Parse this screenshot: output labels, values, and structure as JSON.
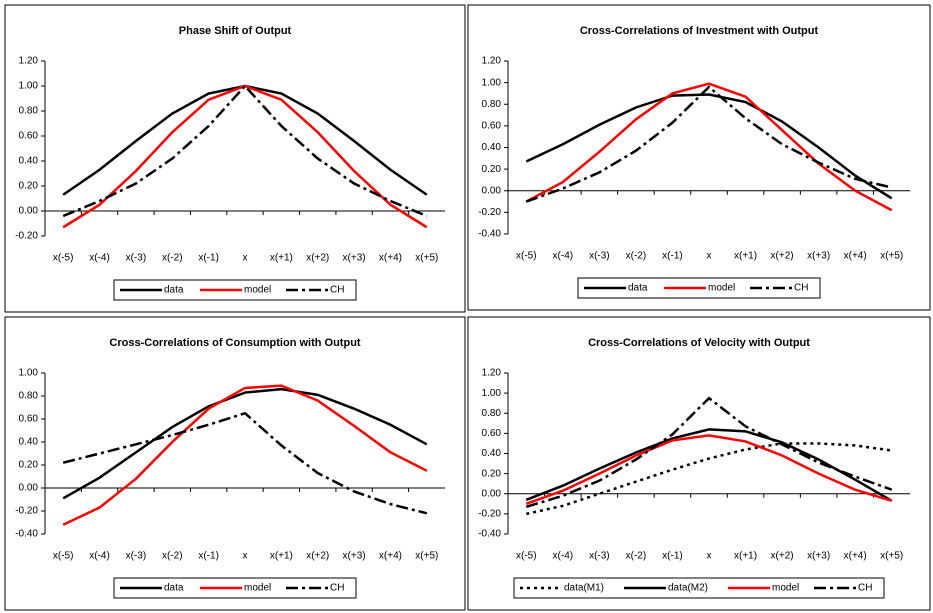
{
  "chart_data": [
    {
      "type": "line",
      "title": "Phase Shift of Output",
      "categories": [
        "x(-5)",
        "x(-4)",
        "x(-3)",
        "x(-2)",
        "x(-1)",
        "x",
        "x(+1)",
        "x(+2)",
        "x(+3)",
        "x(+4)",
        "x(+5)"
      ],
      "series": [
        {
          "name": "data",
          "color": "#000000",
          "style": "solid",
          "values": [
            0.13,
            0.33,
            0.56,
            0.78,
            0.94,
            1.0,
            0.94,
            0.78,
            0.56,
            0.33,
            0.13
          ]
        },
        {
          "name": "model",
          "color": "#ff0000",
          "style": "solid",
          "values": [
            -0.13,
            0.05,
            0.32,
            0.63,
            0.89,
            1.0,
            0.89,
            0.63,
            0.32,
            0.05,
            -0.13
          ]
        },
        {
          "name": "CH",
          "color": "#000000",
          "style": "dashdot",
          "values": [
            -0.04,
            0.08,
            0.22,
            0.42,
            0.68,
            1.0,
            0.68,
            0.42,
            0.22,
            0.08,
            -0.04
          ]
        }
      ],
      "ylim": [
        -0.2,
        1.2
      ],
      "yticks": [
        {
          "value": -0.2,
          "label": "-0.20"
        },
        {
          "value": 0,
          "label": "0.00"
        },
        {
          "value": 0.2,
          "label": "0.20"
        },
        {
          "value": 0.4,
          "label": "0.40"
        },
        {
          "value": 0.6,
          "label": "0.60"
        },
        {
          "value": 0.8,
          "label": "0.80"
        },
        {
          "value": 1.0,
          "label": "1.00"
        },
        {
          "value": 1.2,
          "label": "1.20"
        }
      ]
    },
    {
      "type": "line",
      "title": "Cross-Correlations of Investment with Output",
      "categories": [
        "x(-5)",
        "x(-4)",
        "x(-3)",
        "x(-2)",
        "x(-1)",
        "x",
        "x(+1)",
        "x(+2)",
        "x(+3)",
        "x(+4)",
        "x(+5)"
      ],
      "series": [
        {
          "name": "data",
          "color": "#000000",
          "style": "solid",
          "values": [
            0.27,
            0.43,
            0.61,
            0.77,
            0.88,
            0.89,
            0.82,
            0.64,
            0.4,
            0.14,
            -0.07
          ]
        },
        {
          "name": "model",
          "color": "#ff0000",
          "style": "solid",
          "values": [
            -0.1,
            0.08,
            0.36,
            0.66,
            0.9,
            0.99,
            0.87,
            0.56,
            0.25,
            0.0,
            -0.18
          ]
        },
        {
          "name": "CH",
          "color": "#000000",
          "style": "dashdot",
          "values": [
            -0.1,
            0.02,
            0.17,
            0.37,
            0.63,
            0.96,
            0.67,
            0.43,
            0.26,
            0.11,
            0.03
          ]
        }
      ],
      "ylim": [
        -0.4,
        1.2
      ],
      "yticks": [
        {
          "value": -0.4,
          "label": "-0.40"
        },
        {
          "value": -0.2,
          "label": "-0.20"
        },
        {
          "value": 0,
          "label": "0.00"
        },
        {
          "value": 0.2,
          "label": "0.20"
        },
        {
          "value": 0.4,
          "label": "0.40"
        },
        {
          "value": 0.6,
          "label": "0.60"
        },
        {
          "value": 0.8,
          "label": "0.80"
        },
        {
          "value": 1.0,
          "label": "1.00"
        },
        {
          "value": 1.2,
          "label": "1.20"
        }
      ]
    },
    {
      "type": "line",
      "title": "Cross-Correlations of Consumption with Output",
      "categories": [
        "x(-5)",
        "x(-4)",
        "x(-3)",
        "x(-2)",
        "x(-1)",
        "x",
        "x(+1)",
        "x(+2)",
        "x(+3)",
        "x(+4)",
        "x(+5)"
      ],
      "series": [
        {
          "name": "data",
          "color": "#000000",
          "style": "solid",
          "values": [
            -0.09,
            0.09,
            0.31,
            0.53,
            0.71,
            0.83,
            0.86,
            0.81,
            0.69,
            0.55,
            0.38
          ]
        },
        {
          "name": "model",
          "color": "#ff0000",
          "style": "solid",
          "values": [
            -0.32,
            -0.17,
            0.08,
            0.4,
            0.69,
            0.87,
            0.89,
            0.76,
            0.54,
            0.31,
            0.15
          ]
        },
        {
          "name": "CH",
          "color": "#000000",
          "style": "dashdot",
          "values": [
            0.22,
            0.3,
            0.38,
            0.46,
            0.55,
            0.65,
            0.37,
            0.13,
            -0.03,
            -0.14,
            -0.22
          ]
        }
      ],
      "ylim": [
        -0.4,
        1.0
      ],
      "yticks": [
        {
          "value": -0.4,
          "label": "-0.40"
        },
        {
          "value": -0.2,
          "label": "-0.20"
        },
        {
          "value": 0,
          "label": "0.00"
        },
        {
          "value": 0.2,
          "label": "0.20"
        },
        {
          "value": 0.4,
          "label": "0.40"
        },
        {
          "value": 0.6,
          "label": "0.60"
        },
        {
          "value": 0.8,
          "label": "0.80"
        },
        {
          "value": 1.0,
          "label": "1.00"
        }
      ]
    },
    {
      "type": "line",
      "title": "Cross-Correlations of Velocity with Output",
      "categories": [
        "x(-5)",
        "x(-4)",
        "x(-3)",
        "x(-2)",
        "x(-1)",
        "x",
        "x(+1)",
        "x(+2)",
        "x(+3)",
        "x(+4)",
        "x(+5)"
      ],
      "series": [
        {
          "name": "data(M1)",
          "color": "#000000",
          "style": "dot",
          "values": [
            -0.2,
            -0.12,
            0.0,
            0.12,
            0.24,
            0.35,
            0.44,
            0.5,
            0.5,
            0.48,
            0.43
          ]
        },
        {
          "name": "data(M2)",
          "color": "#000000",
          "style": "solid",
          "values": [
            -0.06,
            0.08,
            0.25,
            0.41,
            0.55,
            0.64,
            0.62,
            0.51,
            0.34,
            0.14,
            -0.07
          ]
        },
        {
          "name": "model",
          "color": "#ff0000",
          "style": "solid",
          "values": [
            -0.1,
            0.03,
            0.2,
            0.38,
            0.53,
            0.58,
            0.52,
            0.38,
            0.2,
            0.04,
            -0.07
          ]
        },
        {
          "name": "CH",
          "color": "#000000",
          "style": "dashdot",
          "values": [
            -0.13,
            -0.02,
            0.13,
            0.34,
            0.59,
            0.95,
            0.67,
            0.49,
            0.31,
            0.17,
            0.04
          ]
        }
      ],
      "ylim": [
        -0.4,
        1.2
      ],
      "yticks": [
        {
          "value": -0.4,
          "label": "-0.40"
        },
        {
          "value": -0.2,
          "label": "-0.20"
        },
        {
          "value": 0,
          "label": "0.00"
        },
        {
          "value": 0.2,
          "label": "0.20"
        },
        {
          "value": 0.4,
          "label": "0.40"
        },
        {
          "value": 0.6,
          "label": "0.60"
        },
        {
          "value": 0.8,
          "label": "0.80"
        },
        {
          "value": 1.0,
          "label": "1.00"
        },
        {
          "value": 1.2,
          "label": "1.20"
        }
      ]
    }
  ]
}
